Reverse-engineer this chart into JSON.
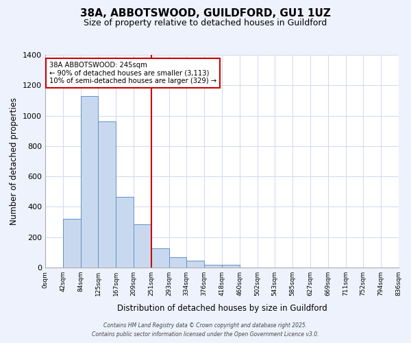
{
  "title": "38A, ABBOTSWOOD, GUILDFORD, GU1 1UZ",
  "subtitle": "Size of property relative to detached houses in Guildford",
  "xlabel": "Distribution of detached houses by size in Guildford",
  "ylabel": "Number of detached properties",
  "bar_edges": [
    0,
    42,
    84,
    125,
    167,
    209,
    251,
    293,
    334,
    376,
    418,
    460,
    502,
    543,
    585,
    627,
    669,
    711,
    752,
    794,
    836
  ],
  "bar_heights": [
    0,
    320,
    1130,
    960,
    465,
    285,
    125,
    68,
    45,
    20,
    20,
    0,
    0,
    0,
    0,
    0,
    0,
    0,
    0,
    0
  ],
  "bar_color": "#c8d9ef",
  "bar_edgecolor": "#6090c8",
  "vline_x": 251,
  "vline_color": "#cc0000",
  "ylim": [
    0,
    1400
  ],
  "yticks": [
    0,
    200,
    400,
    600,
    800,
    1000,
    1200,
    1400
  ],
  "annotation_line1": "38A ABBOTSWOOD: 245sqm",
  "annotation_line2": "← 90% of detached houses are smaller (3,113)",
  "annotation_line3": "10% of semi-detached houses are larger (329) →",
  "tick_labels": [
    "0sqm",
    "42sqm",
    "84sqm",
    "125sqm",
    "167sqm",
    "209sqm",
    "251sqm",
    "293sqm",
    "334sqm",
    "376sqm",
    "418sqm",
    "460sqm",
    "502sqm",
    "543sqm",
    "585sqm",
    "627sqm",
    "669sqm",
    "711sqm",
    "752sqm",
    "794sqm",
    "836sqm"
  ],
  "footer1": "Contains HM Land Registry data © Crown copyright and database right 2025.",
  "footer2": "Contains public sector information licensed under the Open Government Licence v3.0.",
  "bg_color": "#eef2fc",
  "plot_bg_color": "#ffffff",
  "grid_color": "#d0d8ee"
}
